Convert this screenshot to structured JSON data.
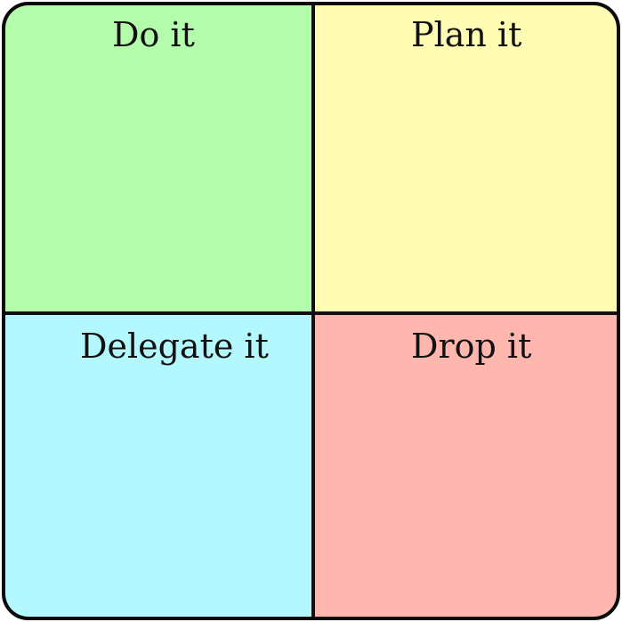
{
  "quadrants": [
    {
      "id": "do",
      "label": "Do it",
      "color": "#b3fcab"
    },
    {
      "id": "plan",
      "label": "Plan it",
      "color": "#fffdb3"
    },
    {
      "id": "delegate",
      "label": "Delegate it",
      "color": "#b3f7ff"
    },
    {
      "id": "drop",
      "label": "Drop it",
      "color": "#ffb6ae"
    }
  ],
  "border_color": "#0a0a0a"
}
